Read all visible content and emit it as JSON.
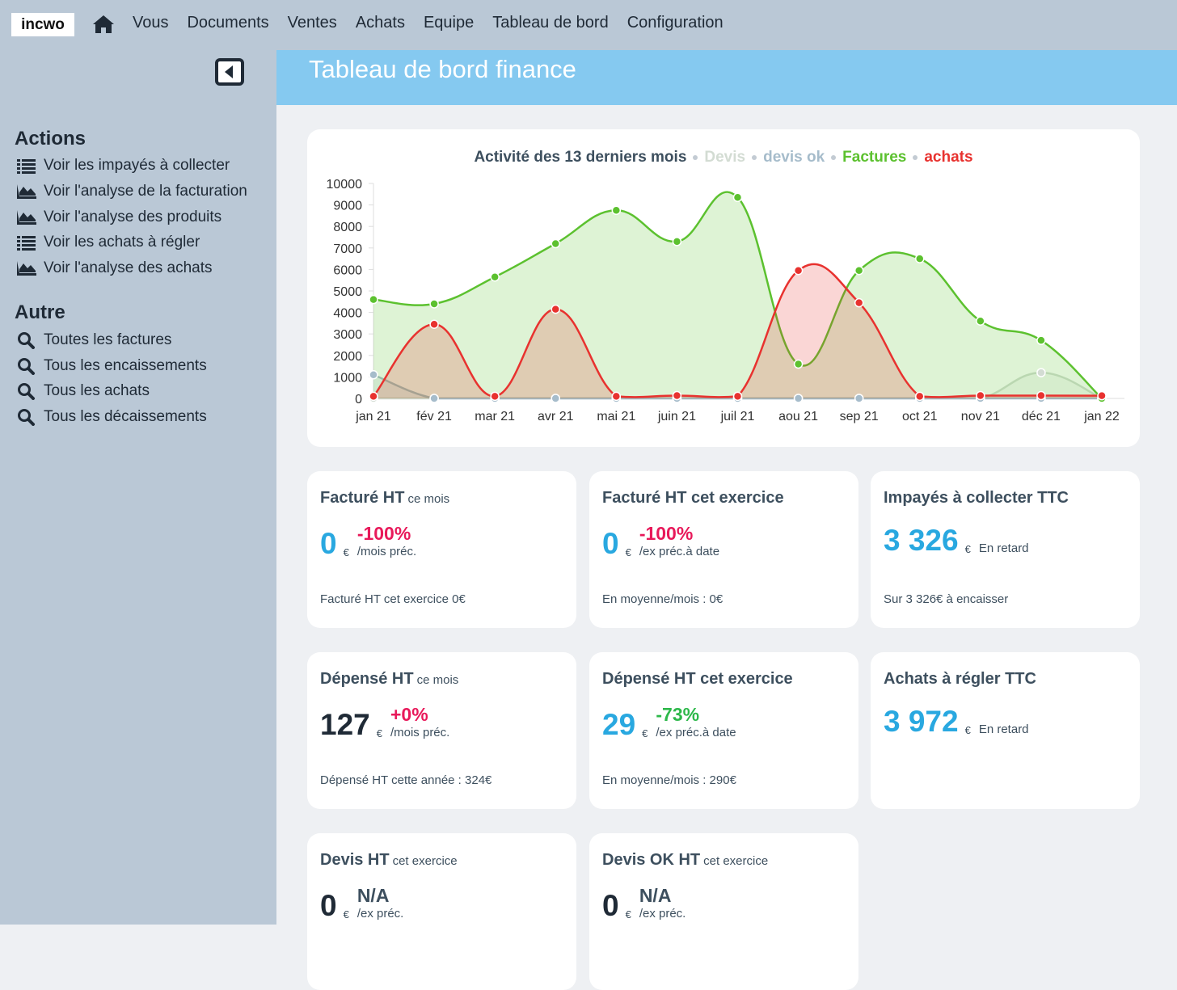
{
  "nav": {
    "logo": "incwo",
    "items": [
      "Vous",
      "Documents",
      "Ventes",
      "Achats",
      "Equipe",
      "Tableau de bord",
      "Configuration"
    ]
  },
  "sidebar": {
    "sections": [
      {
        "title": "Actions",
        "items": [
          "Voir les impayés à collecter",
          "Voir l'analyse de la facturation",
          "Voir l'analyse des produits",
          "Voir les achats à régler",
          "Voir l'analyse des achats"
        ]
      },
      {
        "title": "Autre",
        "items": [
          "Toutes les factures",
          "Tous les encaissements",
          "Tous les achats",
          "Tous les décaissements"
        ]
      }
    ]
  },
  "header": {
    "title": "Tableau de bord finance"
  },
  "chart_data": {
    "type": "line",
    "title": "Activité des 13 derniers mois",
    "categories": [
      "jan 21",
      "fév 21",
      "mar 21",
      "avr 21",
      "mai 21",
      "juin 21",
      "juil 21",
      "aou 21",
      "sep 21",
      "oct 21",
      "nov 21",
      "déc 21",
      "jan 22"
    ],
    "series": [
      {
        "name": "Devis",
        "color": "#d3dcd3",
        "values": [
          0,
          0,
          0,
          0,
          0,
          0,
          0,
          0,
          0,
          0,
          0,
          1200,
          0
        ]
      },
      {
        "name": "devis ok",
        "color": "#a6bccb",
        "values": [
          1100,
          0,
          0,
          0,
          0,
          0,
          0,
          0,
          0,
          0,
          0,
          0,
          0
        ]
      },
      {
        "name": "Factures",
        "color": "#5cc12f",
        "values": [
          4600,
          4400,
          5650,
          7200,
          8750,
          7300,
          9350,
          1600,
          5950,
          6500,
          3600,
          2700,
          0
        ]
      },
      {
        "name": "achats",
        "color": "#e8322f",
        "values": [
          100,
          3450,
          100,
          4150,
          100,
          130,
          100,
          5950,
          4450,
          100,
          130,
          130,
          127
        ]
      }
    ],
    "ylim": [
      0,
      10000
    ],
    "yticks": [
      0,
      1000,
      2000,
      3000,
      4000,
      5000,
      6000,
      7000,
      8000,
      9000,
      10000
    ],
    "grid": false,
    "area": true
  },
  "cards": [
    {
      "title": "Facturé HT",
      "suffix": "ce mois",
      "value": "0",
      "currency": "€",
      "value_color": "#29a8e0",
      "change": "-100%",
      "change_color": "#e8195a",
      "note": "/mois préc.",
      "footer": "Facturé HT cet exercice 0€"
    },
    {
      "title": "Facturé HT cet exercice",
      "value": "0",
      "currency": "€",
      "value_color": "#29a8e0",
      "change": "-100%",
      "change_color": "#e8195a",
      "note": "/ex préc.à date",
      "footer": "En moyenne/mois : 0€"
    },
    {
      "title": "Impayés à collecter TTC",
      "value": "3 326",
      "currency": "€",
      "value_color": "#29a8e0",
      "note": "En retard",
      "footer": "Sur 3 326€  à encaisser"
    },
    {
      "title": "Dépensé HT",
      "suffix": "ce mois",
      "value": "127",
      "currency": "€",
      "value_color": "#1f2a36",
      "change": "+0%",
      "change_color": "#e8195a",
      "note": "/mois préc.",
      "footer": "Dépensé HT cette année : 324€"
    },
    {
      "title": "Dépensé HT cet exercice",
      "value": "29",
      "currency": "€",
      "value_color": "#29a8e0",
      "change": "-73%",
      "change_color": "#2db84a",
      "note": "/ex préc.à date",
      "footer": "En moyenne/mois : 290€"
    },
    {
      "title": "Achats à régler TTC",
      "value": "3 972",
      "currency": "€",
      "value_color": "#29a8e0",
      "note": "En retard"
    },
    {
      "title": "Devis HT",
      "suffix": "cet exercice",
      "value": "0",
      "currency": "€",
      "value_color": "#1f2a36",
      "change": "N/A",
      "change_color": "#3d4f5e",
      "note": "/ex préc."
    },
    {
      "title": "Devis OK HT",
      "suffix": "cet exercice",
      "value": "0",
      "currency": "€",
      "value_color": "#1f2a36",
      "change": "N/A",
      "change_color": "#3d4f5e",
      "note": "/ex préc."
    }
  ]
}
